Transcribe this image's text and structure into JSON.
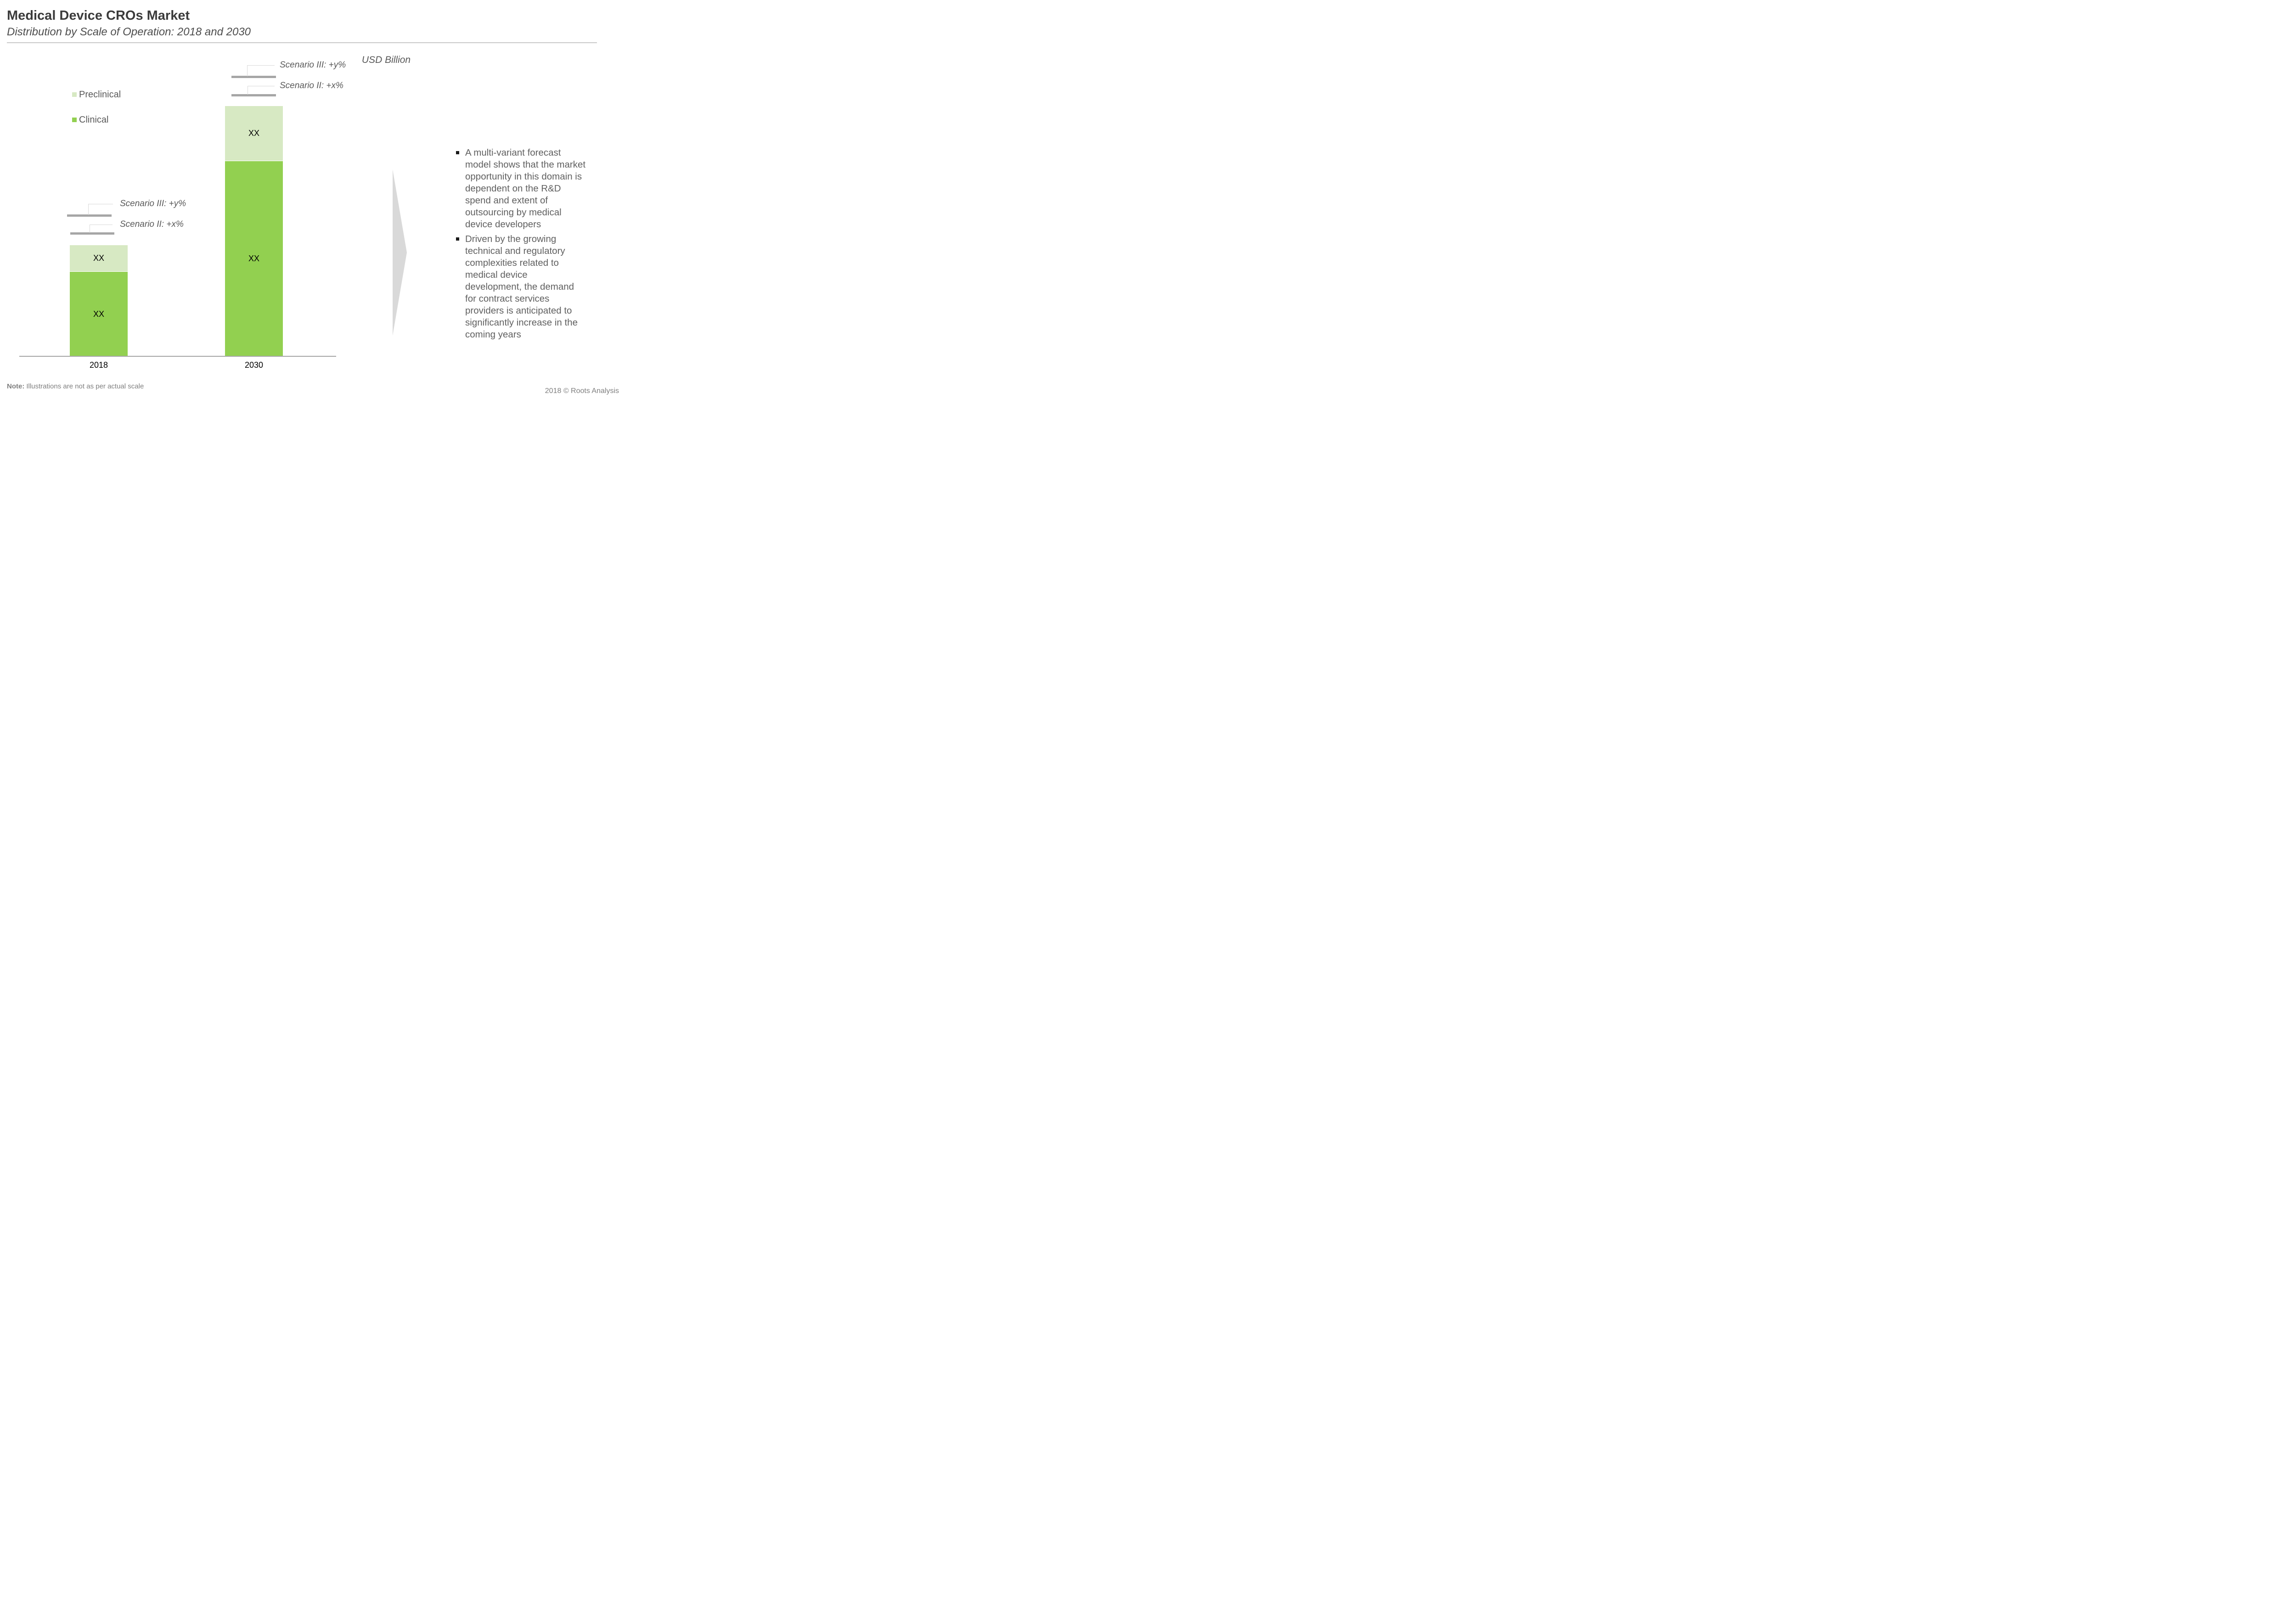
{
  "header": {
    "title": "Medical Device CROs Market",
    "subtitle": "Distribution by Scale of Operation: 2018 and 2030"
  },
  "chart": {
    "unit_label": "USD Billion",
    "legend": [
      {
        "label": "Preclinical",
        "color": "#d7e9c3"
      },
      {
        "label": "Clinical",
        "color": "#92d050"
      }
    ],
    "annotations": {
      "scenario_iii": "Scenario III: +y%",
      "scenario_ii": "Scenario II: +x%"
    },
    "bars": [
      {
        "category": "2018",
        "segments": [
          {
            "name": "Preclinical",
            "value": "XX"
          },
          {
            "name": "Clinical",
            "value": "XX"
          }
        ]
      },
      {
        "category": "2030",
        "segments": [
          {
            "name": "Preclinical",
            "value": "XX"
          },
          {
            "name": "Clinical",
            "value": "XX"
          }
        ]
      }
    ]
  },
  "chart_data": {
    "type": "bar",
    "stacked": true,
    "title": "Medical Device CROs Market",
    "subtitle": "Distribution by Scale of Operation: 2018 and 2030",
    "unit": "USD Billion",
    "categories": [
      "2018",
      "2030"
    ],
    "series": [
      {
        "name": "Clinical",
        "values": [
          "XX",
          "XX"
        ],
        "color": "#92d050"
      },
      {
        "name": "Preclinical",
        "values": [
          "XX",
          "XX"
        ],
        "color": "#d7e9c3"
      }
    ],
    "annotations": [
      {
        "target": "2018",
        "labels": [
          "Scenario II: +x%",
          "Scenario III: +y%"
        ]
      },
      {
        "target": "2030",
        "labels": [
          "Scenario II: +x%",
          "Scenario III: +y%"
        ]
      }
    ],
    "legend_position": "upper-left",
    "axes": {
      "y_axis_visible": false,
      "x_baseline_visible": true
    },
    "grid": false,
    "note": "Illustrations are not as per actual scale"
  },
  "insights": {
    "bullets": [
      "A multi-variant forecast model shows that the market opportunity in this domain is dependent on the R&D spend and extent of outsourcing by medical device developers",
      "Driven by the growing technical and regulatory complexities related to medical device development, the demand for contract services providers is anticipated to significantly increase in the coming years"
    ]
  },
  "footer": {
    "note_label": "Note:",
    "note_text": "Illustrations are not as per actual scale",
    "copyright": "2018 © Roots Analysis"
  },
  "colors": {
    "clinical_green": "#92d050",
    "preclinical_green": "#d7e9c3",
    "scenario_bar_gray": "#a6a6a6",
    "axis_gray": "#a6a6a6",
    "arrow_gray": "#d9d9d9",
    "divider_gray": "#c9c9c9",
    "title_text": "#3b3b3b",
    "body_text": "#606060",
    "footer_text": "#7f7f7f"
  }
}
